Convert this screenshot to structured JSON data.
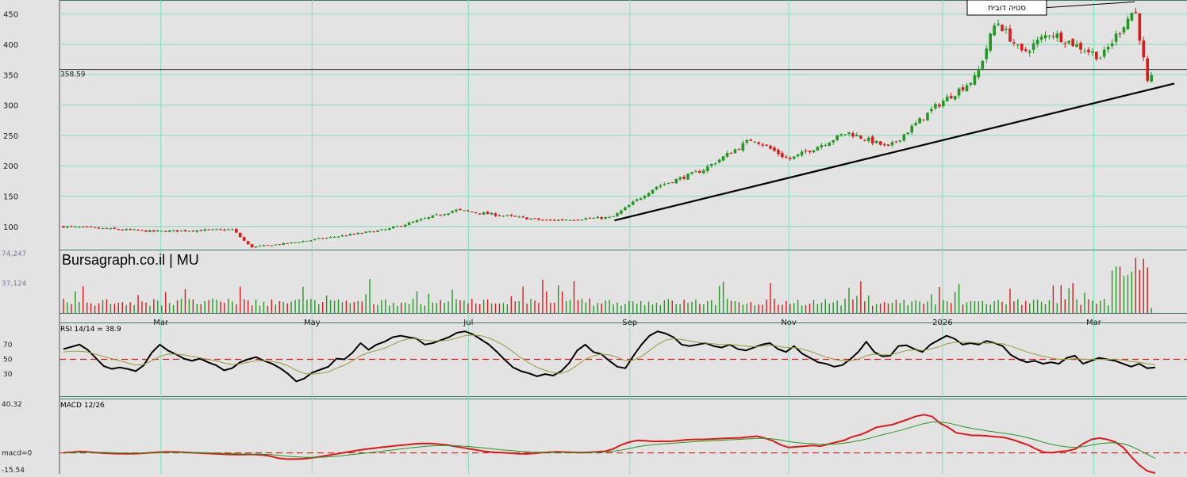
{
  "header": {
    "title": "Bursagraph.co.il | MU"
  },
  "colors": {
    "background": "#e3e3e3",
    "grid": "#7fe0b8",
    "up": "#1f9a1f",
    "down": "#e01818",
    "rsi": "#000000",
    "rsi_signal": "#9a9a32",
    "macd": "#e01818",
    "macd_signal": "#1f9a1f",
    "reference": "#e01818",
    "axis_text": "#333333",
    "volume_axis_text": "#7a7aa8"
  },
  "chart_data": [
    {
      "id": "price",
      "type": "candlestick",
      "title": "",
      "ylim": [
        62,
        473
      ],
      "yticks": [
        100,
        150,
        200,
        250,
        300,
        350,
        400,
        450
      ],
      "grid": true,
      "reference_line": {
        "value": 358.59,
        "label": "358.59"
      },
      "trendline": {
        "points": [
          {
            "date": "2025-08-27",
            "value": 110
          },
          {
            "date": "2026-03-26",
            "value": 325
          }
        ]
      },
      "annotation": {
        "label": "סטיה דובית",
        "points": [
          {
            "date": "2026-01-23",
            "value": 455
          },
          {
            "date": "2026-03-18",
            "value": 470
          }
        ]
      },
      "key_levels": [
        {
          "date": "2025-01-24",
          "close": 100
        },
        {
          "date": "2025-02-28",
          "close": 92
        },
        {
          "date": "2025-03-31",
          "close": 95
        },
        {
          "date": "2025-04-07",
          "close": 66
        },
        {
          "date": "2025-04-21",
          "close": 72
        },
        {
          "date": "2025-05-30",
          "close": 95
        },
        {
          "date": "2025-06-26",
          "close": 127
        },
        {
          "date": "2025-07-31",
          "close": 110
        },
        {
          "date": "2025-08-26",
          "close": 115
        },
        {
          "date": "2025-09-12",
          "close": 165
        },
        {
          "date": "2025-09-30",
          "close": 192
        },
        {
          "date": "2025-10-20",
          "close": 245
        },
        {
          "date": "2025-11-03",
          "close": 210
        },
        {
          "date": "2025-11-26",
          "close": 255
        },
        {
          "date": "2025-12-12",
          "close": 230
        },
        {
          "date": "2025-12-31",
          "close": 300
        },
        {
          "date": "2026-01-15",
          "close": 345
        },
        {
          "date": "2026-01-23",
          "close": 440
        },
        {
          "date": "2026-02-02",
          "close": 385
        },
        {
          "date": "2026-02-13",
          "close": 420
        },
        {
          "date": "2026-03-05",
          "close": 378
        },
        {
          "date": "2026-03-18",
          "close": 460
        },
        {
          "date": "2026-03-23",
          "close": 335
        },
        {
          "date": "2026-03-26",
          "close": 352
        }
      ]
    },
    {
      "id": "volume",
      "type": "bar",
      "yticks": [
        {
          "value": 37124,
          "label": "37,124"
        },
        {
          "value": 74247,
          "label": "74,247"
        }
      ],
      "ylim": [
        0,
        78000
      ]
    },
    {
      "id": "rsi",
      "type": "line",
      "label": "RSI 14/14 = 38.9",
      "ylim": [
        0,
        100
      ],
      "yticks": [
        30,
        50,
        70
      ],
      "reference": 50,
      "series": [
        {
          "name": "RSI",
          "values": [
            64,
            67,
            70,
            63,
            52,
            41,
            37,
            39,
            37,
            34,
            42,
            59,
            70,
            62,
            57,
            51,
            48,
            51,
            46,
            42,
            35,
            38,
            46,
            50,
            53,
            48,
            44,
            38,
            30,
            20,
            24,
            32,
            36,
            40,
            51,
            50,
            59,
            72,
            63,
            70,
            74,
            80,
            82,
            80,
            78,
            70,
            72,
            76,
            80,
            86,
            88,
            84,
            77,
            70,
            60,
            49,
            39,
            34,
            31,
            27,
            30,
            28,
            34,
            45,
            62,
            70,
            60,
            57,
            48,
            40,
            38,
            55,
            70,
            82,
            88,
            85,
            80,
            70,
            68,
            70,
            72,
            68,
            66,
            70,
            64,
            62,
            66,
            70,
            72,
            64,
            60,
            68,
            58,
            52,
            46,
            44,
            40,
            42,
            50,
            60,
            74,
            60,
            54,
            55,
            68,
            69,
            64,
            60,
            70,
            76,
            82,
            78,
            70,
            72,
            70,
            75,
            72,
            68,
            56,
            50,
            46,
            48,
            44,
            46,
            44,
            52,
            55,
            44,
            48,
            52,
            50,
            48,
            44,
            40,
            44,
            38,
            39
          ]
        },
        {
          "name": "signal",
          "values": [
            60,
            61,
            61,
            60,
            57,
            54,
            51,
            48,
            45,
            42,
            43,
            48,
            54,
            57,
            57,
            56,
            54,
            52,
            50,
            48,
            45,
            43,
            44,
            46,
            48,
            48,
            47,
            45,
            41,
            35,
            31,
            30,
            31,
            33,
            38,
            42,
            48,
            55,
            59,
            62,
            65,
            70,
            75,
            78,
            78,
            76,
            75,
            75,
            76,
            79,
            82,
            83,
            82,
            79,
            74,
            68,
            60,
            52,
            45,
            39,
            35,
            32,
            31,
            35,
            42,
            50,
            55,
            57,
            56,
            53,
            48,
            49,
            54,
            62,
            70,
            76,
            78,
            77,
            75,
            73,
            72,
            71,
            70,
            70,
            69,
            68,
            67,
            68,
            69,
            68,
            66,
            66,
            64,
            61,
            57,
            53,
            50,
            48,
            48,
            50,
            55,
            57,
            56,
            56,
            59,
            62,
            63,
            62,
            64,
            67,
            71,
            73,
            73,
            73,
            72,
            72,
            72,
            71,
            68,
            64,
            60,
            57,
            54,
            52,
            50,
            50,
            51,
            50,
            50,
            50,
            50,
            50,
            49,
            47,
            46,
            44,
            43
          ]
        }
      ]
    },
    {
      "id": "macd",
      "type": "line",
      "label": "MACD 12/26",
      "ylim": [
        -15.54,
        40.32
      ],
      "yticks": [
        {
          "value": 40.32,
          "label": "40.32"
        },
        {
          "value": 0,
          "label": "macd=0"
        },
        {
          "value": -15.54,
          "label": "-15.54"
        }
      ],
      "reference": 0,
      "series": [
        {
          "name": "MACD",
          "values": [
            0.2,
            0.5,
            1.0,
            0.8,
            0.3,
            -0.2,
            -0.5,
            -0.6,
            -0.7,
            -0.6,
            -0.3,
            0.2,
            0.6,
            0.8,
            0.7,
            0.5,
            0.2,
            -0.1,
            -0.4,
            -0.7,
            -1.0,
            -1.2,
            -1.3,
            -1.2,
            -1.2,
            -1.6,
            -2.5,
            -4.0,
            -4.6,
            -4.6,
            -4.4,
            -3.8,
            -3.0,
            -2.0,
            -1.0,
            0.0,
            1.0,
            2.0,
            2.8,
            3.5,
            4.2,
            4.8,
            5.5,
            6.0,
            6.6,
            7.0,
            7.0,
            6.5,
            6.0,
            5.0,
            4.0,
            3.0,
            2.0,
            1.0,
            0.5,
            0.2,
            -0.2,
            -0.6,
            -0.8,
            -0.4,
            0.2,
            0.6,
            0.8,
            0.6,
            0.4,
            0.2,
            0.5,
            0.8,
            1.2,
            3.0,
            6.0,
            8.0,
            9.3,
            9.0,
            8.5,
            8.6,
            8.5,
            9.0,
            9.6,
            10.0,
            10.0,
            10.2,
            10.5,
            10.8,
            11.0,
            11.2,
            11.8,
            12.4,
            11.0,
            9.0,
            6.0,
            4.0,
            4.5,
            5.0,
            5.5,
            5.0,
            6.5,
            8.0,
            9.4,
            12.0,
            13.5,
            16.0,
            19.0,
            20.0,
            21.0,
            23.0,
            25.0,
            27.2,
            28.4,
            27.0,
            22.0,
            19.0,
            15.0,
            14.0,
            13.0,
            13.0,
            12.5,
            12.0,
            11.5,
            10.0,
            8.0,
            6.0,
            3.0,
            0.5,
            0.2,
            0.9,
            1.5,
            3.0,
            7.0,
            10.0,
            11.0,
            10.0,
            8.0,
            4.0,
            -3.0,
            -9.0,
            -13.5,
            -15.0
          ]
        },
        {
          "name": "signal",
          "values": [
            0.2,
            0.3,
            0.5,
            0.6,
            0.5,
            0.4,
            0.2,
            0.0,
            -0.1,
            -0.2,
            -0.2,
            -0.1,
            0.1,
            0.3,
            0.4,
            0.4,
            0.4,
            0.3,
            0.1,
            -0.1,
            -0.3,
            -0.5,
            -0.7,
            -0.8,
            -0.9,
            -1.0,
            -1.3,
            -1.8,
            -2.4,
            -2.9,
            -3.2,
            -3.3,
            -3.3,
            -3.0,
            -2.6,
            -2.1,
            -1.4,
            -0.8,
            -0.1,
            0.6,
            1.3,
            2.0,
            2.7,
            3.4,
            4.0,
            4.6,
            5.1,
            5.4,
            5.5,
            5.4,
            5.1,
            4.7,
            4.1,
            3.5,
            2.9,
            2.3,
            1.8,
            1.3,
            0.9,
            0.6,
            0.5,
            0.5,
            0.6,
            0.6,
            0.6,
            0.5,
            0.5,
            0.6,
            0.7,
            1.2,
            2.1,
            3.3,
            4.5,
            5.4,
            6.0,
            6.6,
            7.0,
            7.4,
            7.8,
            8.3,
            8.6,
            8.9,
            9.2,
            9.5,
            9.8,
            10.1,
            10.4,
            10.8,
            10.8,
            10.4,
            9.5,
            8.4,
            7.6,
            7.1,
            6.8,
            6.4,
            6.4,
            6.7,
            7.2,
            8.2,
            9.3,
            10.6,
            12.3,
            13.8,
            15.2,
            16.7,
            18.4,
            20.2,
            21.8,
            22.9,
            22.9,
            22.2,
            20.8,
            19.4,
            18.2,
            17.2,
            16.2,
            15.4,
            14.6,
            13.7,
            12.6,
            11.3,
            9.7,
            7.8,
            6.3,
            5.2,
            4.4,
            4.1,
            4.7,
            5.8,
            6.8,
            7.4,
            7.5,
            6.8,
            4.8,
            2.0,
            -1.1,
            -4.0
          ]
        }
      ]
    }
  ],
  "x_axis": {
    "labels": [
      {
        "date": "2025-03-03",
        "label": "Mar"
      },
      {
        "date": "2025-05-01",
        "label": "May"
      },
      {
        "date": "2025-07-01",
        "label": "Jul"
      },
      {
        "date": "2025-09-02",
        "label": "Sep"
      },
      {
        "date": "2025-11-03",
        "label": "Nov"
      },
      {
        "date": "2026-01-02",
        "label": "2026"
      },
      {
        "date": "2026-03-02",
        "label": "Mar"
      }
    ]
  }
}
